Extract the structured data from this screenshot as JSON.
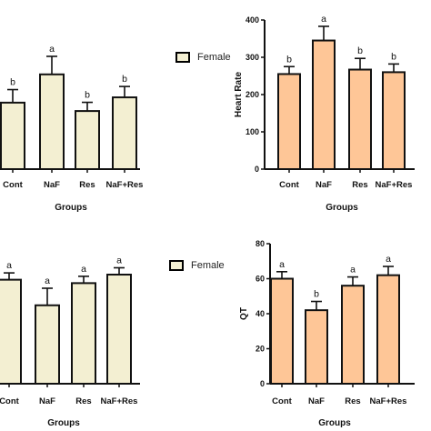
{
  "colors": {
    "female_fill": "#f3efd2",
    "male_fill": "#fec697",
    "stroke": "#111111"
  },
  "legends": [
    {
      "label": "Female",
      "swatch_color": "#f3efd2"
    },
    {
      "label": "Female",
      "swatch_color": "#f3efd2"
    }
  ],
  "chart_data": [
    {
      "type": "bar",
      "panel": "top-left",
      "categories": [
        "Cont",
        "NaF",
        "Res",
        "NaF+Res"
      ],
      "values": [
        214,
        305,
        187,
        231
      ],
      "errors": [
        42,
        58,
        28,
        35
      ],
      "significance": [
        "b",
        "a",
        "b",
        "b"
      ],
      "xlabel": "Groups",
      "ylabel": "",
      "ylim": [
        0,
        480
      ],
      "show_y_axis": false,
      "fill": "#f3efd2"
    },
    {
      "type": "bar",
      "panel": "top-right",
      "categories": [
        "Cont",
        "NaF",
        "Res",
        "NaF+Res"
      ],
      "values": [
        255,
        345,
        267,
        260
      ],
      "errors": [
        20,
        38,
        30,
        22
      ],
      "significance": [
        "b",
        "a",
        "b",
        "b"
      ],
      "xlabel": "Groups",
      "ylabel": "Heart Rate",
      "ylim": [
        0,
        400
      ],
      "yticks": [
        0,
        100,
        200,
        300,
        400
      ],
      "show_y_axis": true,
      "fill": "#fec697"
    },
    {
      "type": "bar",
      "panel": "bottom-left",
      "categories": [
        "Cont",
        "NaF",
        "Res",
        "NaF+Res"
      ],
      "values": [
        61,
        46,
        59,
        64
      ],
      "errors": [
        4,
        10,
        4,
        4
      ],
      "significance": [
        "a",
        "a",
        "a",
        "a"
      ],
      "xlabel": "Groups",
      "ylabel": "",
      "ylim": [
        0,
        80
      ],
      "show_y_axis": false,
      "fill": "#f3efd2"
    },
    {
      "type": "bar",
      "panel": "bottom-right",
      "categories": [
        "Cont",
        "NaF",
        "Res",
        "NaF+Res"
      ],
      "values": [
        60,
        42,
        56,
        62
      ],
      "errors": [
        4,
        5,
        5,
        5
      ],
      "significance": [
        "a",
        "b",
        "a",
        "a"
      ],
      "xlabel": "Groups",
      "ylabel": "QT",
      "ylim": [
        0,
        80
      ],
      "yticks": [
        0,
        20,
        40,
        60,
        80
      ],
      "show_y_axis": true,
      "fill": "#fec697"
    }
  ]
}
